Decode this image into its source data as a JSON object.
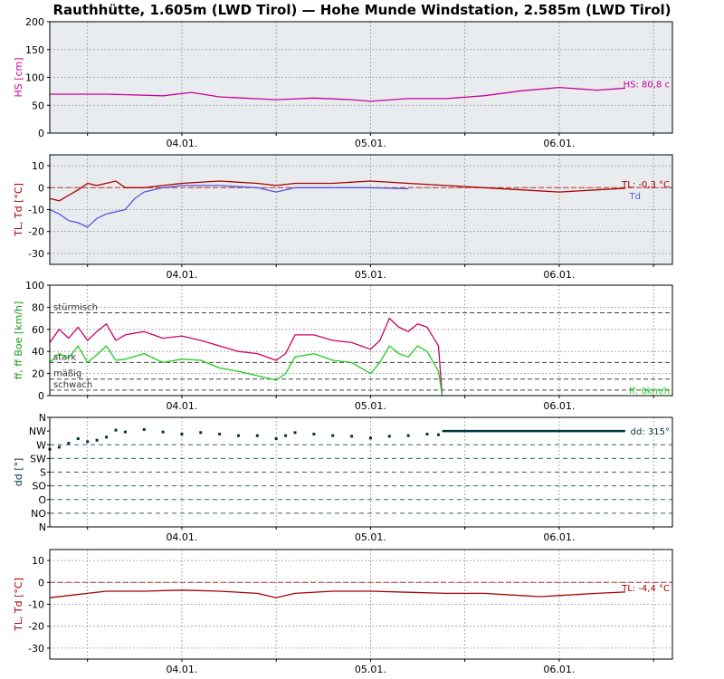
{
  "title": "Rauthhütte, 1.605m (LWD Tirol) — Hohe Munde Windstation, 2.585m (LWD Tirol)",
  "colors": {
    "hs": "#cc0099",
    "tl": "#aa0000",
    "td": "#5555dd",
    "ff": "#cc0066",
    "fboe": "#22cc22",
    "dd": "#003344",
    "grid": "#999999",
    "panel_bg": "#e8ecef",
    "ref_line": "#cc3333"
  },
  "chart_data": [
    {
      "type": "line",
      "id": "hs",
      "ylabel": "HS [cm]",
      "ylim": [
        0,
        200
      ],
      "yticks": [
        0,
        50,
        100,
        150,
        200
      ],
      "xlim": [
        0.3,
        3.6
      ],
      "x_tick_labels": [
        "04.01.",
        "05.01.",
        "06.01."
      ],
      "x_tick_values": [
        1,
        2,
        3
      ],
      "background": "shaded",
      "series": [
        {
          "key": "hs",
          "x": [
            0.3,
            0.6,
            0.9,
            1.05,
            1.2,
            1.5,
            1.7,
            1.9,
            2.0,
            2.2,
            2.4,
            2.6,
            2.8,
            3.0,
            3.2,
            3.35
          ],
          "y": [
            70,
            70,
            67,
            73,
            65,
            60,
            63,
            60,
            57,
            62,
            62,
            67,
            76,
            82,
            77,
            80.8
          ]
        }
      ],
      "end_label": "HS: 80,8 c",
      "end_label_color": "hs"
    },
    {
      "type": "line",
      "id": "tl_td",
      "ylabel": "TL, Td [°C]",
      "ylim": [
        -35,
        15
      ],
      "yticks": [
        -30,
        -20,
        -10,
        0,
        10
      ],
      "xlim": [
        0.3,
        3.6
      ],
      "x_tick_labels": [
        "04.01.",
        "05.01.",
        "06.01."
      ],
      "x_tick_values": [
        1,
        2,
        3
      ],
      "background": "shaded",
      "ref_line": 0,
      "series": [
        {
          "key": "tl",
          "x": [
            0.3,
            0.35,
            0.45,
            0.5,
            0.55,
            0.65,
            0.7,
            0.8,
            0.9,
            1.0,
            1.2,
            1.4,
            1.5,
            1.6,
            1.8,
            2.0,
            2.2,
            2.4,
            2.6,
            2.8,
            3.0,
            3.2,
            3.35
          ],
          "y": [
            -5,
            -6,
            -1,
            2,
            1,
            3,
            0,
            0,
            1,
            2,
            3,
            2,
            1,
            2,
            2,
            3,
            2,
            1,
            0,
            -1,
            -2,
            -1,
            -0.3
          ]
        },
        {
          "key": "td",
          "x": [
            0.3,
            0.35,
            0.4,
            0.45,
            0.5,
            0.55,
            0.6,
            0.65,
            0.7,
            0.75,
            0.8,
            0.9,
            1.0,
            1.2,
            1.4,
            1.5,
            1.55,
            1.6,
            1.8,
            2.0,
            2.2
          ],
          "y": [
            -10,
            -12,
            -15,
            -16,
            -18,
            -14,
            -12,
            -11,
            -10,
            -5,
            -2,
            0,
            1,
            1,
            0,
            -2,
            -1,
            0,
            0,
            0,
            -0.5
          ]
        }
      ],
      "end_label": "TL: -0,3 °C",
      "end_label_color": "tl",
      "end_label_2": "Td",
      "end_label_2_color": "td"
    },
    {
      "type": "line",
      "id": "ff",
      "ylabel": "ff, ff Boe [km/h]",
      "ylim": [
        0,
        100
      ],
      "yticks": [
        0,
        20,
        40,
        60,
        80,
        100
      ],
      "xlim": [
        0.3,
        3.6
      ],
      "x_tick_labels": [
        "04.01.",
        "05.01.",
        "06.01."
      ],
      "x_tick_values": [
        1,
        2,
        3
      ],
      "background": "white",
      "thresholds": [
        {
          "value": 75,
          "label": "stürmisch"
        },
        {
          "value": 30,
          "label": "stark"
        },
        {
          "value": 15,
          "label": "mäßig"
        },
        {
          "value": 5,
          "label": "schwach"
        }
      ],
      "series": [
        {
          "key": "ff",
          "x": [
            0.3,
            0.35,
            0.4,
            0.45,
            0.5,
            0.55,
            0.6,
            0.65,
            0.7,
            0.8,
            0.9,
            1.0,
            1.1,
            1.2,
            1.3,
            1.4,
            1.5,
            1.55,
            1.6,
            1.7,
            1.8,
            1.9,
            2.0,
            2.05,
            2.1,
            2.15,
            2.2,
            2.25,
            2.3,
            2.36,
            2.38
          ],
          "y": [
            48,
            60,
            52,
            62,
            50,
            58,
            65,
            50,
            55,
            58,
            52,
            54,
            50,
            45,
            40,
            38,
            32,
            38,
            55,
            55,
            50,
            48,
            42,
            50,
            70,
            62,
            58,
            65,
            62,
            45,
            0
          ]
        },
        {
          "key": "fboe",
          "x": [
            0.3,
            0.35,
            0.4,
            0.45,
            0.5,
            0.55,
            0.6,
            0.65,
            0.7,
            0.8,
            0.9,
            1.0,
            1.1,
            1.2,
            1.3,
            1.4,
            1.5,
            1.55,
            1.6,
            1.7,
            1.8,
            1.9,
            2.0,
            2.05,
            2.1,
            2.15,
            2.2,
            2.25,
            2.3,
            2.36,
            2.38
          ],
          "y": [
            30,
            38,
            34,
            45,
            30,
            37,
            45,
            32,
            33,
            38,
            30,
            33,
            32,
            25,
            22,
            18,
            14,
            20,
            35,
            38,
            32,
            30,
            20,
            30,
            45,
            38,
            35,
            45,
            40,
            22,
            0
          ]
        }
      ],
      "end_label": "ff: 0km/h",
      "end_label_color": "fboe"
    },
    {
      "type": "scatter",
      "id": "dd",
      "ylabel": "dd [°]",
      "ylim": [
        0,
        360
      ],
      "ytick_values": [
        0,
        45,
        90,
        135,
        180,
        225,
        270,
        315,
        360
      ],
      "ytick_labels": [
        "N",
        "NO",
        "O",
        "SO",
        "S",
        "SW",
        "W",
        "NW",
        "N"
      ],
      "xlim": [
        0.3,
        3.6
      ],
      "x_tick_labels": [
        "04.01.",
        "05.01.",
        "06.01."
      ],
      "x_tick_values": [
        1,
        2,
        3
      ],
      "background": "white",
      "dashed_levels": [
        45,
        90,
        135,
        180,
        225,
        270
      ],
      "series": [
        {
          "key": "dd",
          "x": [
            0.3,
            0.35,
            0.4,
            0.45,
            0.5,
            0.55,
            0.6,
            0.65,
            0.7,
            0.8,
            0.9,
            1.0,
            1.1,
            1.2,
            1.3,
            1.4,
            1.5,
            1.55,
            1.6,
            1.7,
            1.8,
            1.9,
            2.0,
            2.1,
            2.2,
            2.3,
            2.36
          ],
          "y": [
            255,
            262,
            275,
            290,
            280,
            285,
            295,
            318,
            312,
            320,
            312,
            305,
            310,
            305,
            300,
            300,
            290,
            300,
            310,
            305,
            300,
            298,
            292,
            298,
            300,
            305,
            303
          ]
        }
      ],
      "hold_line": {
        "from": 2.38,
        "to": 3.35,
        "value": 315
      },
      "end_label": "dd: 315°",
      "end_label_color": "dd"
    },
    {
      "type": "line",
      "id": "tl_summit",
      "ylabel": "TL, Td [°C]",
      "ylim": [
        -35,
        15
      ],
      "yticks": [
        -30,
        -20,
        -10,
        0,
        10
      ],
      "xlim": [
        0.3,
        3.6
      ],
      "x_tick_labels": [
        "04.01.",
        "05.01.",
        "06.01."
      ],
      "x_tick_values": [
        1,
        2,
        3
      ],
      "background": "white",
      "ref_line": 0,
      "series": [
        {
          "key": "tl",
          "x": [
            0.3,
            0.4,
            0.5,
            0.6,
            0.8,
            1.0,
            1.2,
            1.4,
            1.5,
            1.55,
            1.6,
            1.8,
            2.0,
            2.2,
            2.4,
            2.6,
            2.8,
            2.9,
            3.0,
            3.2,
            3.35
          ],
          "y": [
            -7,
            -6,
            -5,
            -4,
            -4,
            -3.5,
            -4,
            -5,
            -7,
            -6,
            -5,
            -4,
            -4,
            -4.5,
            -5,
            -5,
            -6,
            -6.5,
            -6,
            -5,
            -4.4
          ]
        }
      ],
      "end_label": "TL: -4,4 °C",
      "end_label_color": "tl"
    }
  ]
}
